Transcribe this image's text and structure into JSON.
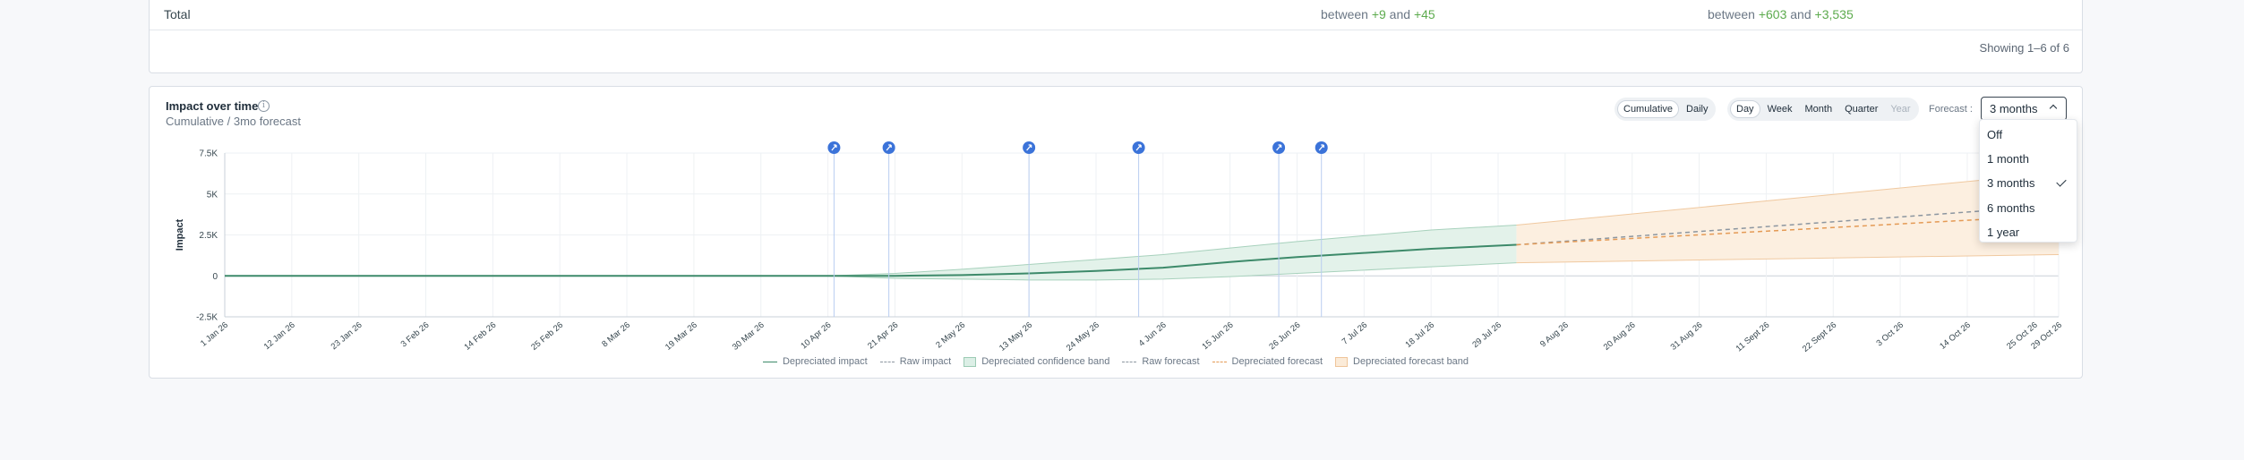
{
  "table": {
    "total_label": "Total",
    "col1": {
      "prefix": "between ",
      "low": "+9",
      "mid": " and ",
      "high": "+45"
    },
    "col2": {
      "prefix": "between ",
      "low": "+603",
      "mid": " and ",
      "high": "+3,535"
    },
    "showing": "Showing 1–6 of 6"
  },
  "chart_card": {
    "title": "Impact over time",
    "info_icon": "i",
    "subtitle": "Cumulative / 3mo forecast",
    "mode_toggle": [
      {
        "label": "Cumulative",
        "active": true
      },
      {
        "label": "Daily",
        "active": false
      }
    ],
    "granularity": [
      {
        "label": "Day",
        "active": true
      },
      {
        "label": "Week",
        "active": false
      },
      {
        "label": "Month",
        "active": false
      },
      {
        "label": "Quarter",
        "active": false
      },
      {
        "label": "Year",
        "disabled": true
      }
    ],
    "forecast_label": "Forecast :",
    "forecast_value": "3 months"
  },
  "forecast_dropdown": {
    "options": [
      "Off",
      "1 month",
      "3 months",
      "6 months",
      "1 year"
    ],
    "selected": "3 months"
  },
  "chart_data": {
    "type": "line",
    "ylabel": "Impact",
    "y_ticks": [
      "7.5K",
      "5K",
      "2.5K",
      "0",
      "-2.5K"
    ],
    "ylim": [
      -2500,
      7500
    ],
    "x_tick_labels": [
      "1 Jan 26",
      "12 Jan 26",
      "23 Jan 26",
      "3 Feb 26",
      "14 Feb 26",
      "25 Feb 26",
      "8 Mar 26",
      "19 Mar 26",
      "30 Mar 26",
      "10 Apr 26",
      "21 Apr 26",
      "2 May 26",
      "13 May 26",
      "24 May 26",
      "4 Jun 26",
      "15 Jun 26",
      "26 Jun 26",
      "7 Jul 26",
      "18 Jul 26",
      "29 Jul 26",
      "9 Aug 26",
      "20 Aug 26",
      "31 Aug 26",
      "11 Sept 26",
      "22 Sept 26",
      "3 Oct 26",
      "14 Oct 26",
      "25 Oct 26",
      "29 Oct 26"
    ],
    "events": [
      {
        "date": "11 Apr 26",
        "icon": "rocket-icon"
      },
      {
        "date": "20 Apr 26",
        "icon": "rocket-icon"
      },
      {
        "date": "13 May 26",
        "icon": "rocket-icon"
      },
      {
        "date": "31 May 26",
        "icon": "rocket-icon"
      },
      {
        "date": "23 Jun 26",
        "icon": "rocket-icon"
      },
      {
        "date": "30 Jun 26",
        "icon": "rocket-icon"
      }
    ],
    "forecast_start": "1 Aug 26",
    "series": [
      {
        "name": "Depreciated impact",
        "color": "#3d8a6a",
        "x": [
          "1 Jan 26",
          "10 Apr 26",
          "21 Apr 26",
          "2 May 26",
          "13 May 26",
          "24 May 26",
          "4 Jun 26",
          "15 Jun 26",
          "26 Jun 26",
          "7 Jul 26",
          "18 Jul 26",
          "1 Aug 26"
        ],
        "y": [
          0,
          0,
          0,
          50,
          150,
          300,
          500,
          850,
          1150,
          1400,
          1650,
          1900
        ]
      },
      {
        "name": "Depreciated confidence band",
        "color": "#dcefe6",
        "x": [
          "1 Jan 26",
          "10 Apr 26",
          "21 Apr 26",
          "2 May 26",
          "13 May 26",
          "24 May 26",
          "4 Jun 26",
          "15 Jun 26",
          "26 Jun 26",
          "7 Jul 26",
          "18 Jul 26",
          "1 Aug 26"
        ],
        "upper": [
          0,
          0,
          150,
          400,
          700,
          1000,
          1300,
          1700,
          2100,
          2450,
          2800,
          3100
        ],
        "lower": [
          0,
          0,
          -150,
          -200,
          -250,
          -250,
          -200,
          -50,
          150,
          350,
          550,
          800
        ]
      },
      {
        "name": "Raw forecast",
        "color": "#8c96a0",
        "x": [
          "1 Aug 26",
          "29 Oct 26"
        ],
        "y": [
          1900,
          4300
        ]
      },
      {
        "name": "Depreciated forecast",
        "color": "#e49a55",
        "x": [
          "1 Aug 26",
          "29 Oct 26"
        ],
        "y": [
          1900,
          3700
        ]
      },
      {
        "name": "Depreciated forecast band",
        "color": "#fbebd8",
        "x": [
          "1 Aug 26",
          "29 Oct 26"
        ],
        "upper": [
          3100,
          6300
        ],
        "lower": [
          800,
          1300
        ]
      }
    ],
    "legend": [
      {
        "name": "Depreciated impact",
        "style": "line"
      },
      {
        "name": "Raw impact",
        "style": "dash"
      },
      {
        "name": "Depreciated confidence band",
        "style": "green-band"
      },
      {
        "name": "Raw forecast",
        "style": "dash"
      },
      {
        "name": "Depreciated forecast",
        "style": "orange-dash"
      },
      {
        "name": "Depreciated forecast band",
        "style": "orange-band"
      }
    ],
    "legend_position": "bottom",
    "grid": true
  }
}
